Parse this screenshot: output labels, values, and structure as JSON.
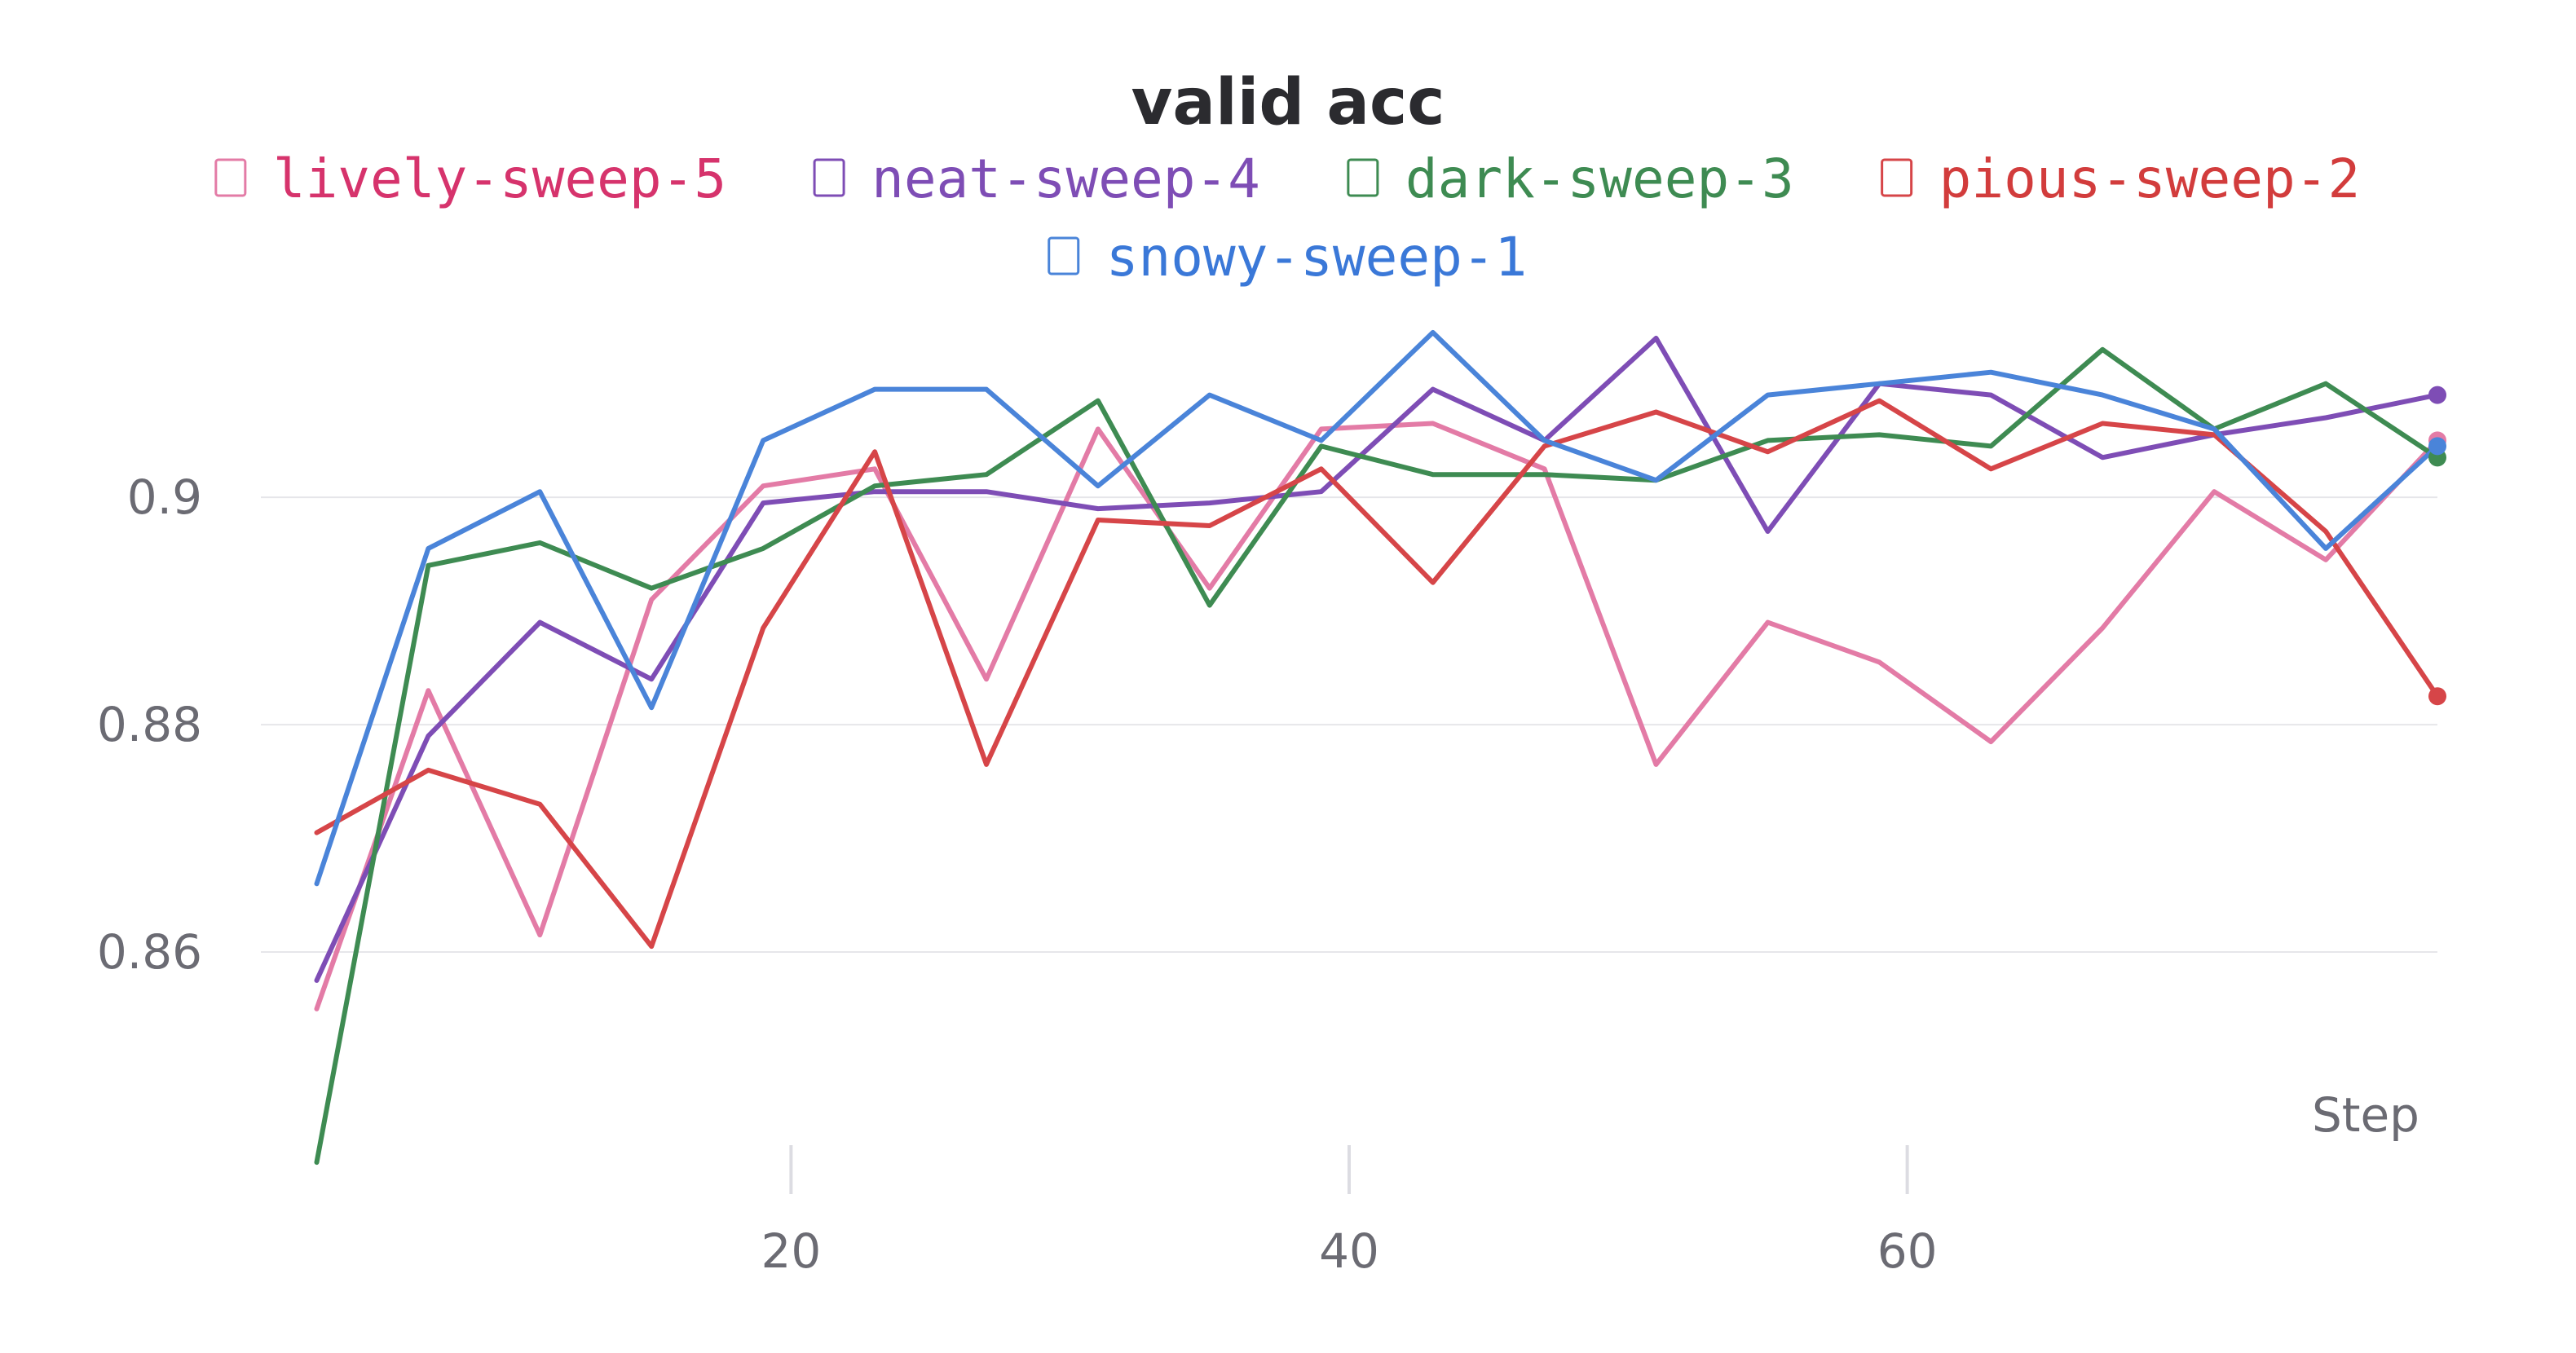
{
  "chart_data": {
    "type": "line",
    "title": "valid acc",
    "xlabel": "Step",
    "ylabel": "",
    "xlim": [
      1,
      79
    ],
    "ylim": [
      0.8405,
      0.9165
    ],
    "x_ticks": [
      20,
      40,
      60
    ],
    "y_ticks": [
      0.86,
      0.88,
      0.9
    ],
    "grid": "horizontal",
    "legend": "top-center",
    "x": [
      3,
      7,
      11,
      15,
      19,
      23,
      27,
      31,
      35,
      39,
      43,
      47,
      51,
      55,
      59,
      63,
      67,
      71,
      75,
      79
    ],
    "series": [
      {
        "name": "lively-sweep-5",
        "color": "#e37ba6",
        "text_color": "#d6336c",
        "values": [
          0.855,
          0.883,
          0.8615,
          0.891,
          0.901,
          0.9025,
          0.884,
          0.906,
          0.892,
          0.906,
          0.9065,
          0.9025,
          0.8765,
          0.889,
          0.8855,
          0.8785,
          0.8885,
          0.9005,
          0.8945,
          0.905
        ]
      },
      {
        "name": "neat-sweep-4",
        "color": "#7e4db5",
        "text_color": "#7e4db5",
        "values": [
          0.8575,
          0.879,
          0.889,
          0.884,
          0.8995,
          0.9005,
          0.9005,
          0.899,
          0.8995,
          0.9005,
          0.9095,
          0.905,
          0.914,
          0.897,
          0.91,
          0.909,
          0.9035,
          0.9055,
          0.907,
          0.909
        ]
      },
      {
        "name": "dark-sweep-3",
        "color": "#3e8b52",
        "text_color": "#3e8b52",
        "values": [
          0.8415,
          0.894,
          0.896,
          0.892,
          0.8955,
          0.901,
          0.902,
          0.9085,
          0.8905,
          0.9045,
          0.902,
          0.902,
          0.9015,
          0.905,
          0.9055,
          0.9045,
          0.913,
          0.906,
          0.91,
          0.9035
        ]
      },
      {
        "name": "pious-sweep-2",
        "color": "#d64548",
        "text_color": "#d23c3c",
        "values": [
          0.8705,
          0.876,
          0.873,
          0.8605,
          0.8885,
          0.904,
          0.8765,
          0.898,
          0.8975,
          0.9025,
          0.8925,
          0.9045,
          0.9075,
          0.904,
          0.9085,
          0.9025,
          0.9065,
          0.9055,
          0.897,
          0.8825
        ]
      },
      {
        "name": "snowy-sweep-1",
        "color": "#4a84d9",
        "text_color": "#3a78d8",
        "values": [
          0.866,
          0.8955,
          0.9005,
          0.8815,
          0.905,
          0.9095,
          0.9095,
          0.901,
          0.909,
          0.905,
          0.9145,
          0.905,
          0.9015,
          0.909,
          0.91,
          0.911,
          0.909,
          0.906,
          0.8955,
          0.9045
        ]
      }
    ]
  }
}
